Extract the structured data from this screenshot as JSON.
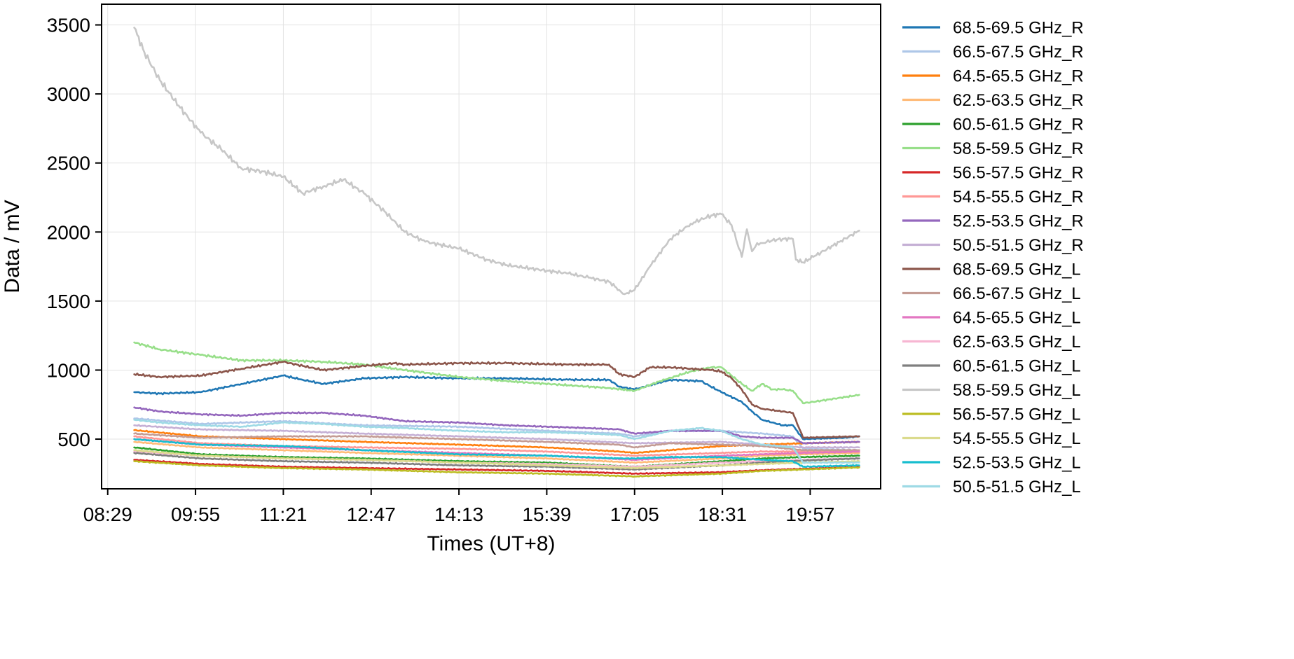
{
  "chart_data": {
    "type": "line",
    "title": "",
    "xlabel": "Times (UT+8)",
    "ylabel": "Data / mV",
    "x_ticks": [
      "08:29",
      "09:55",
      "11:21",
      "12:47",
      "14:13",
      "15:39",
      "17:05",
      "18:31",
      "19:57"
    ],
    "x_tick_minutes": [
      509,
      595,
      681,
      767,
      853,
      939,
      1025,
      1111,
      1197
    ],
    "x_range_minutes": [
      503,
      1266
    ],
    "y_ticks": [
      500,
      1000,
      1500,
      2000,
      2500,
      3000,
      3500
    ],
    "ylim": [
      140,
      3650
    ],
    "grid": true,
    "legend": "outside-right",
    "series": [
      {
        "name": "68.5-69.5 GHz_R",
        "color": "#1f77b4",
        "x": [
          535,
          560,
          600,
          640,
          681,
          700,
          720,
          760,
          800,
          853,
          900,
          960,
          1000,
          1010,
          1025,
          1060,
          1090,
          1110,
          1130,
          1140,
          1150,
          1170,
          1180,
          1190,
          1230,
          1245
        ],
        "y": [
          840,
          830,
          840,
          900,
          960,
          930,
          900,
          940,
          950,
          940,
          940,
          930,
          930,
          880,
          860,
          930,
          920,
          840,
          770,
          700,
          640,
          600,
          600,
          500,
          510,
          520
        ]
      },
      {
        "name": "66.5-67.5 GHz_R",
        "color": "#aec7e8",
        "x": [
          535,
          600,
          681,
          760,
          853,
          939,
          1010,
          1025,
          1060,
          1110,
          1150,
          1180,
          1190,
          1245
        ],
        "y": [
          650,
          610,
          630,
          600,
          590,
          560,
          540,
          520,
          560,
          560,
          540,
          520,
          430,
          420
        ]
      },
      {
        "name": "64.5-65.5 GHz_R",
        "color": "#ff7f0e",
        "x": [
          535,
          600,
          681,
          760,
          853,
          939,
          1010,
          1025,
          1060,
          1110,
          1150,
          1190,
          1245
        ],
        "y": [
          565,
          520,
          500,
          480,
          460,
          440,
          410,
          400,
          420,
          450,
          460,
          470,
          480
        ]
      },
      {
        "name": "62.5-63.5 GHz_R",
        "color": "#ffbb78",
        "x": [
          535,
          600,
          681,
          760,
          853,
          939,
          1025,
          1110,
          1150,
          1190,
          1245
        ],
        "y": [
          480,
          440,
          420,
          400,
          380,
          360,
          330,
          360,
          380,
          390,
          400
        ]
      },
      {
        "name": "60.5-61.5 GHz_R",
        "color": "#2ca02c",
        "x": [
          535,
          600,
          681,
          760,
          853,
          939,
          1025,
          1110,
          1150,
          1190,
          1245
        ],
        "y": [
          440,
          390,
          370,
          360,
          340,
          330,
          300,
          340,
          360,
          370,
          380
        ]
      },
      {
        "name": "58.5-59.5 GHz_R",
        "color": "#98df8a",
        "x": [
          535,
          560,
          600,
          640,
          681,
          720,
          760,
          800,
          853,
          900,
          960,
          1000,
          1025,
          1050,
          1080,
          1100,
          1110,
          1120,
          1130,
          1140,
          1150,
          1160,
          1170,
          1180,
          1190,
          1200,
          1245
        ],
        "y": [
          1200,
          1150,
          1110,
          1070,
          1070,
          1060,
          1040,
          1000,
          950,
          920,
          890,
          870,
          850,
          920,
          990,
          1020,
          1020,
          960,
          900,
          850,
          900,
          860,
          860,
          850,
          760,
          770,
          820
        ]
      },
      {
        "name": "56.5-57.5 GHz_R",
        "color": "#d62728",
        "x": [
          535,
          600,
          681,
          760,
          853,
          939,
          1025,
          1110,
          1150,
          1190,
          1245
        ],
        "y": [
          350,
          320,
          300,
          290,
          280,
          270,
          250,
          260,
          275,
          285,
          300
        ]
      },
      {
        "name": "54.5-55.5 GHz_R",
        "color": "#ff9896",
        "x": [
          535,
          600,
          681,
          760,
          853,
          939,
          1025,
          1110,
          1150,
          1190,
          1245
        ],
        "y": [
          520,
          470,
          450,
          440,
          430,
          410,
          380,
          400,
          410,
          410,
          420
        ]
      },
      {
        "name": "52.5-53.5 GHz_R",
        "color": "#9467bd",
        "x": [
          535,
          560,
          600,
          640,
          681,
          720,
          760,
          800,
          853,
          900,
          939,
          980,
          1010,
          1025,
          1060,
          1110,
          1130,
          1150,
          1180,
          1190,
          1245
        ],
        "y": [
          730,
          700,
          680,
          670,
          690,
          690,
          670,
          630,
          620,
          600,
          590,
          580,
          570,
          540,
          560,
          560,
          520,
          510,
          510,
          470,
          480
        ]
      },
      {
        "name": "50.5-51.5 GHz_R",
        "color": "#c5b0d5",
        "x": [
          535,
          600,
          681,
          760,
          853,
          939,
          1025,
          1110,
          1150,
          1190,
          1245
        ],
        "y": [
          600,
          570,
          560,
          540,
          520,
          500,
          470,
          480,
          460,
          440,
          440
        ]
      },
      {
        "name": "68.5-69.5 GHz_L",
        "color": "#8c564b",
        "x": [
          535,
          560,
          600,
          640,
          681,
          700,
          720,
          760,
          790,
          800,
          853,
          900,
          960,
          1000,
          1010,
          1025,
          1040,
          1060,
          1080,
          1100,
          1110,
          1120,
          1130,
          1140,
          1150,
          1170,
          1180,
          1190,
          1245
        ],
        "y": [
          970,
          950,
          960,
          1010,
          1060,
          1030,
          1000,
          1030,
          1050,
          1040,
          1050,
          1050,
          1040,
          1040,
          970,
          950,
          1020,
          1020,
          1010,
          1000,
          990,
          940,
          860,
          750,
          720,
          700,
          690,
          510,
          520
        ]
      },
      {
        "name": "66.5-67.5 GHz_L",
        "color": "#c49c94",
        "x": [
          535,
          600,
          681,
          760,
          853,
          939,
          1010,
          1025,
          1060,
          1110,
          1150,
          1190,
          1245
        ],
        "y": [
          540,
          510,
          520,
          520,
          500,
          480,
          460,
          440,
          470,
          460,
          450,
          420,
          420
        ]
      },
      {
        "name": "64.5-65.5 GHz_L",
        "color": "#e377c2",
        "x": [
          535,
          600,
          681,
          760,
          853,
          939,
          1025,
          1110,
          1150,
          1190,
          1245
        ],
        "y": [
          500,
          460,
          440,
          420,
          400,
          380,
          350,
          380,
          390,
          400,
          410
        ]
      },
      {
        "name": "62.5-63.5 GHz_L",
        "color": "#f7b6d2",
        "x": [
          535,
          600,
          681,
          760,
          853,
          939,
          1025,
          1110,
          1150,
          1190,
          1245
        ],
        "y": [
          410,
          380,
          360,
          350,
          330,
          320,
          300,
          330,
          340,
          350,
          360
        ]
      },
      {
        "name": "60.5-61.5 GHz_L",
        "color": "#7f7f7f",
        "x": [
          535,
          600,
          681,
          760,
          853,
          939,
          1025,
          1110,
          1150,
          1190,
          1245
        ],
        "y": [
          400,
          360,
          340,
          330,
          310,
          300,
          280,
          310,
          330,
          345,
          360
        ]
      },
      {
        "name": "58.5-59.5 GHz_L",
        "color": "#c7c7c7",
        "x": [
          535,
          545,
          560,
          580,
          600,
          620,
          640,
          660,
          681,
          700,
          720,
          740,
          760,
          780,
          800,
          820,
          853,
          880,
          900,
          939,
          960,
          980,
          1000,
          1010,
          1015,
          1025,
          1040,
          1060,
          1080,
          1100,
          1110,
          1120,
          1130,
          1135,
          1140,
          1145,
          1150,
          1160,
          1170,
          1180,
          1183,
          1190,
          1200,
          1245
        ],
        "y": [
          3480,
          3300,
          3100,
          2900,
          2720,
          2600,
          2460,
          2440,
          2400,
          2280,
          2330,
          2380,
          2280,
          2150,
          2000,
          1930,
          1880,
          1800,
          1760,
          1720,
          1700,
          1670,
          1640,
          1580,
          1550,
          1580,
          1750,
          1950,
          2060,
          2120,
          2130,
          2050,
          1820,
          2020,
          1860,
          1920,
          1920,
          1940,
          1950,
          1950,
          1800,
          1780,
          1820,
          2010
        ]
      },
      {
        "name": "56.5-57.5 GHz_L",
        "color": "#bcbd22",
        "x": [
          535,
          600,
          681,
          760,
          853,
          939,
          1025,
          1110,
          1150,
          1190,
          1245
        ],
        "y": [
          340,
          310,
          290,
          280,
          260,
          250,
          230,
          250,
          270,
          280,
          295
        ]
      },
      {
        "name": "54.5-55.5 GHz_L",
        "color": "#dbdb8d",
        "x": [
          535,
          600,
          681,
          760,
          853,
          939,
          1025,
          1110,
          1150,
          1190,
          1245
        ],
        "y": [
          420,
          380,
          360,
          350,
          330,
          310,
          290,
          310,
          320,
          330,
          340
        ]
      },
      {
        "name": "52.5-53.5 GHz_L",
        "color": "#17becf",
        "x": [
          535,
          600,
          681,
          760,
          853,
          939,
          1010,
          1025,
          1060,
          1110,
          1150,
          1180,
          1190,
          1245
        ],
        "y": [
          500,
          460,
          450,
          420,
          390,
          380,
          360,
          360,
          370,
          370,
          350,
          340,
          300,
          310
        ]
      },
      {
        "name": "50.5-51.5 GHz_L",
        "color": "#9edae5",
        "x": [
          535,
          560,
          600,
          640,
          681,
          720,
          760,
          800,
          853,
          900,
          939,
          980,
          1010,
          1025,
          1060,
          1090,
          1110,
          1130,
          1150,
          1180,
          1190,
          1245
        ],
        "y": [
          640,
          620,
          600,
          590,
          620,
          610,
          590,
          580,
          560,
          550,
          550,
          540,
          530,
          500,
          560,
          580,
          560,
          500,
          460,
          440,
          330,
          330
        ]
      }
    ]
  }
}
